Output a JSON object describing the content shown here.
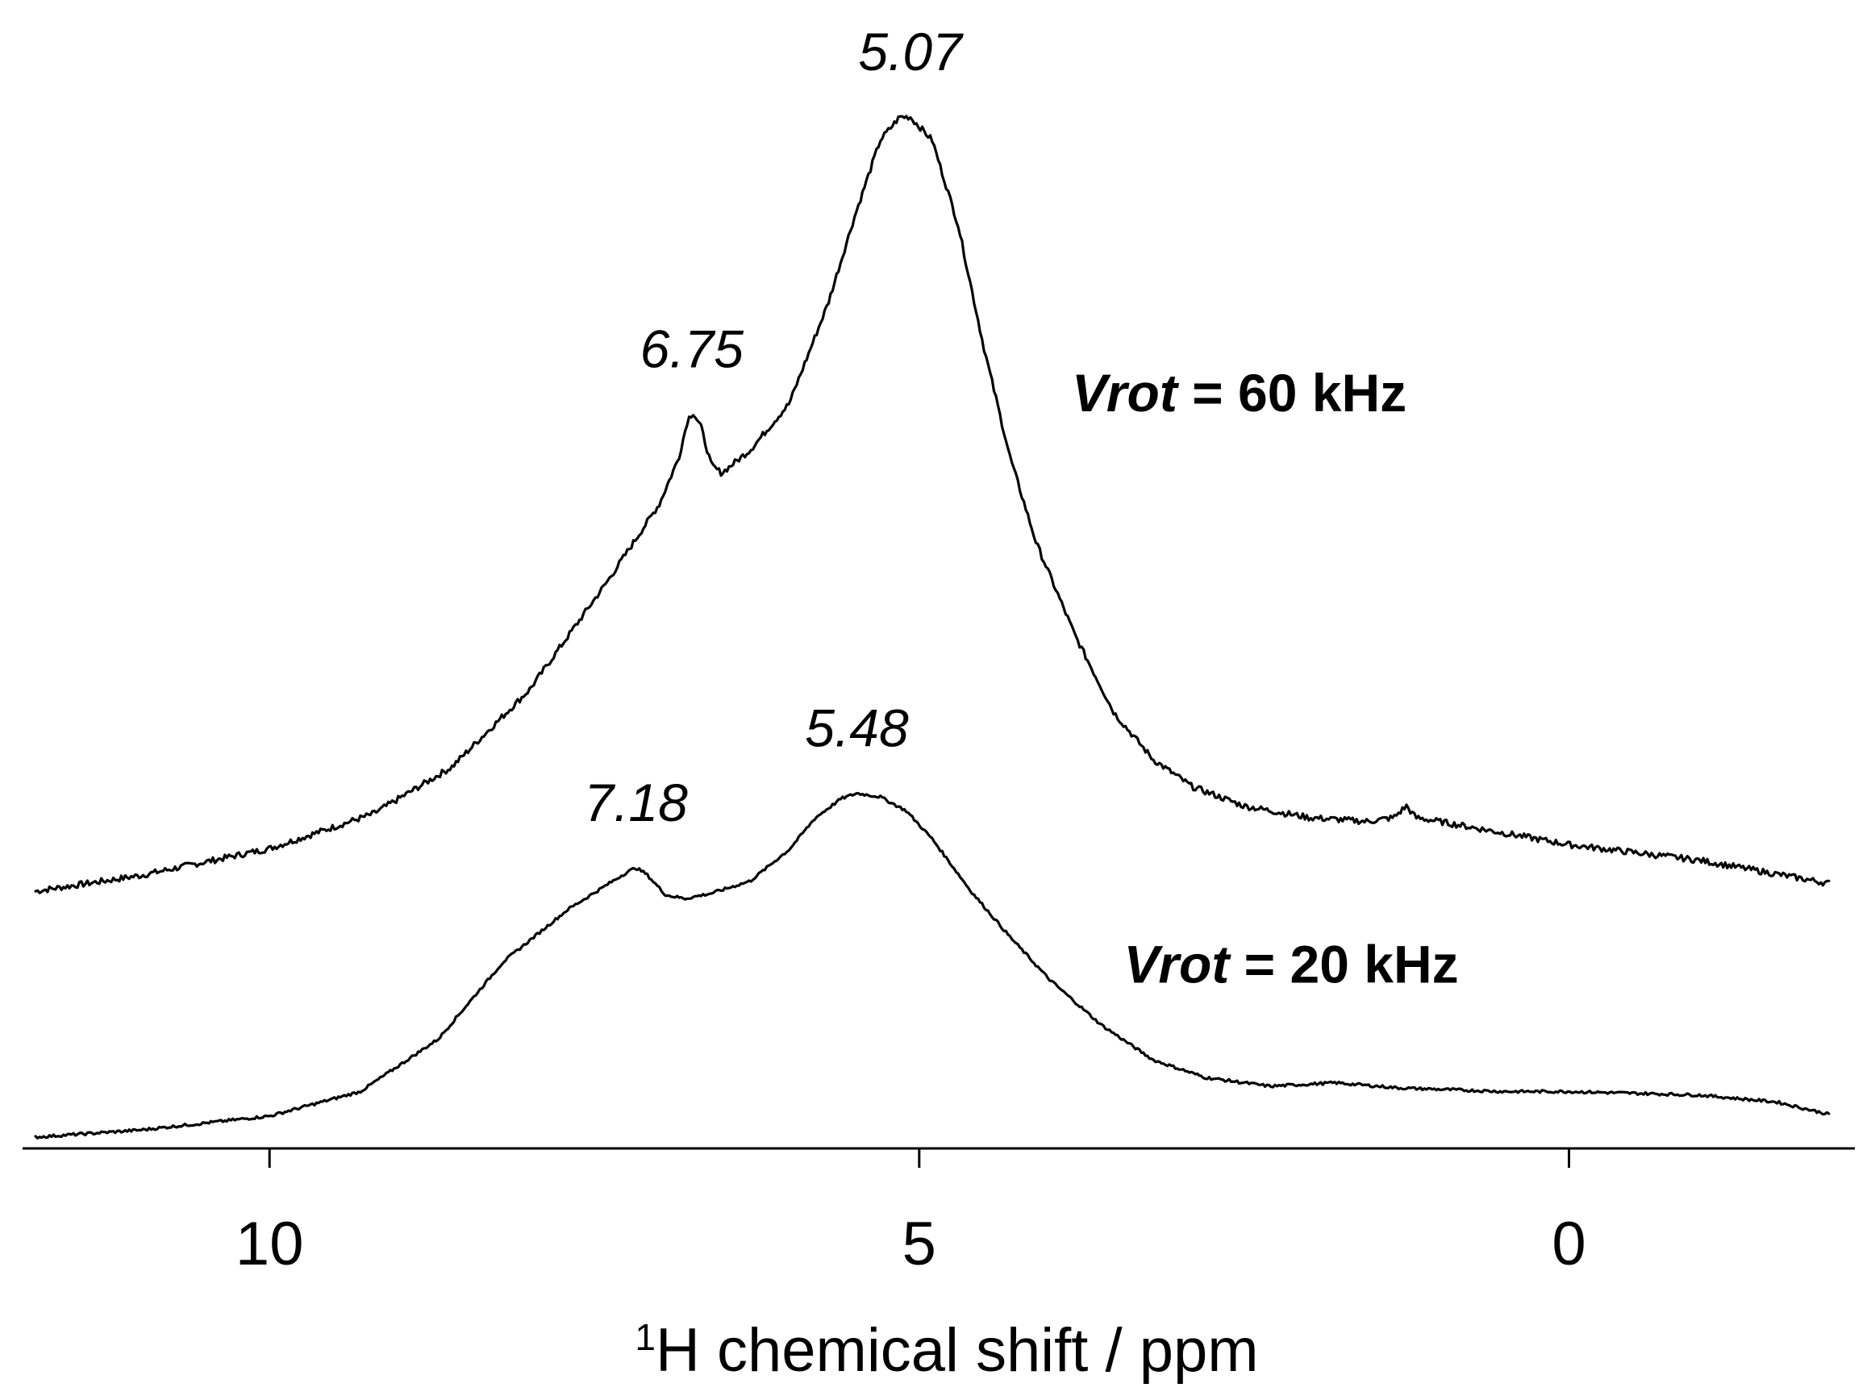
{
  "chart_data": {
    "type": "line",
    "title": "",
    "xlabel_sup": "1",
    "xlabel": "H chemical shift / ppm",
    "ylabel": "",
    "xlim": [
      11.9,
      -2.2
    ],
    "x_reversed": true,
    "y_axis_visible": false,
    "grid": false,
    "x_ticks": [
      {
        "value": 10,
        "label": "10"
      },
      {
        "value": 5,
        "label": "5"
      },
      {
        "value": 0,
        "label": "0"
      }
    ],
    "series": [
      {
        "name": "60 kHz",
        "label_prefix": "Vrot",
        "label_equals": " = ",
        "label_value": "60 kHz",
        "label_anchor_ppm": 3.95,
        "label_anchor_intensity": 0.62,
        "points": [
          [
            11.8,
            0.0
          ],
          [
            11.0,
            0.02
          ],
          [
            10.0,
            0.055
          ],
          [
            9.2,
            0.1
          ],
          [
            8.6,
            0.16
          ],
          [
            8.0,
            0.26
          ],
          [
            7.4,
            0.4
          ],
          [
            7.0,
            0.5
          ],
          [
            6.85,
            0.56
          ],
          [
            6.78,
            0.61
          ],
          [
            6.74,
            0.618
          ],
          [
            6.68,
            0.6
          ],
          [
            6.6,
            0.55
          ],
          [
            6.52,
            0.54
          ],
          [
            6.3,
            0.57
          ],
          [
            6.0,
            0.63
          ],
          [
            5.7,
            0.76
          ],
          [
            5.5,
            0.87
          ],
          [
            5.3,
            0.97
          ],
          [
            5.15,
            1.0
          ],
          [
            5.07,
            1.0
          ],
          [
            4.9,
            0.97
          ],
          [
            4.7,
            0.86
          ],
          [
            4.5,
            0.7
          ],
          [
            4.3,
            0.56
          ],
          [
            4.1,
            0.45
          ],
          [
            3.8,
            0.33
          ],
          [
            3.5,
            0.23
          ],
          [
            3.2,
            0.17
          ],
          [
            2.9,
            0.135
          ],
          [
            2.5,
            0.11
          ],
          [
            2.0,
            0.095
          ],
          [
            1.55,
            0.09
          ],
          [
            1.35,
            0.095
          ],
          [
            1.25,
            0.11
          ],
          [
            1.18,
            0.095
          ],
          [
            1.0,
            0.09
          ],
          [
            0.5,
            0.075
          ],
          [
            0.0,
            0.06
          ],
          [
            -1.0,
            0.04
          ],
          [
            -2.0,
            0.01
          ]
        ],
        "peaks": [
          {
            "ppm": 5.07,
            "label": "5.07"
          },
          {
            "ppm": 6.75,
            "label": "6.75"
          }
        ]
      },
      {
        "name": "20 kHz",
        "label_prefix": "Vrot",
        "label_equals": " = ",
        "label_value": "20 kHz",
        "label_anchor_ppm": 3.55,
        "label_anchor_intensity": 0.44,
        "points": [
          [
            11.8,
            0.0
          ],
          [
            11.0,
            0.02
          ],
          [
            10.0,
            0.06
          ],
          [
            9.3,
            0.13
          ],
          [
            8.7,
            0.28
          ],
          [
            8.2,
            0.5
          ],
          [
            7.7,
            0.65
          ],
          [
            7.4,
            0.72
          ],
          [
            7.25,
            0.755
          ],
          [
            7.18,
            0.768
          ],
          [
            7.1,
            0.75
          ],
          [
            6.95,
            0.69
          ],
          [
            6.8,
            0.68
          ],
          [
            6.6,
            0.695
          ],
          [
            6.3,
            0.73
          ],
          [
            6.0,
            0.82
          ],
          [
            5.8,
            0.91
          ],
          [
            5.6,
            0.965
          ],
          [
            5.48,
            0.98
          ],
          [
            5.3,
            0.97
          ],
          [
            5.1,
            0.93
          ],
          [
            4.9,
            0.85
          ],
          [
            4.6,
            0.7
          ],
          [
            4.3,
            0.57
          ],
          [
            4.0,
            0.45
          ],
          [
            3.6,
            0.32
          ],
          [
            3.2,
            0.22
          ],
          [
            2.8,
            0.17
          ],
          [
            2.3,
            0.145
          ],
          [
            1.8,
            0.155
          ],
          [
            1.3,
            0.14
          ],
          [
            0.5,
            0.13
          ],
          [
            0.0,
            0.13
          ],
          [
            -1.0,
            0.12
          ],
          [
            -1.6,
            0.1
          ],
          [
            -2.0,
            0.065
          ]
        ],
        "peaks": [
          {
            "ppm": 5.48,
            "label": "5.48"
          },
          {
            "ppm": 7.18,
            "label": "7.18"
          }
        ]
      }
    ]
  }
}
